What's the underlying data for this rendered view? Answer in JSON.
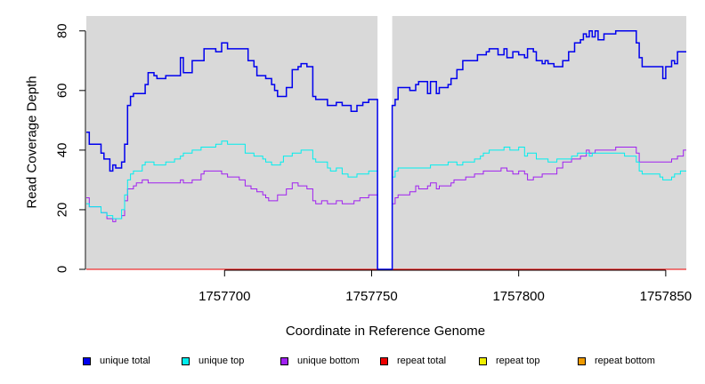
{
  "chart_data": {
    "type": "line",
    "title": "",
    "xlabel": "Coordinate in Reference Genome",
    "ylabel": "Read Coverage Depth",
    "xlim": [
      1757653,
      1757857
    ],
    "ylim": [
      0,
      85
    ],
    "x_ticks": [
      1757700,
      1757750,
      1757800,
      1757850
    ],
    "x_tick_labels": [
      "1757700",
      "1757750",
      "1757800",
      "1757850"
    ],
    "y_ticks": [
      0,
      20,
      40,
      60,
      80
    ],
    "y_tick_labels": [
      "0",
      "20",
      "40",
      "60",
      "80"
    ],
    "background": "#d9d9d9",
    "gap": [
      1757752,
      1757757
    ],
    "series": [
      {
        "name": "unique total",
        "color": "#0000ee",
        "points": [
          [
            1757653,
            46
          ],
          [
            1757654,
            42
          ],
          [
            1757658,
            39
          ],
          [
            1757659,
            37
          ],
          [
            1757661,
            33
          ],
          [
            1757662,
            35
          ],
          [
            1757663,
            34
          ],
          [
            1757665,
            36
          ],
          [
            1757666,
            42
          ],
          [
            1757667,
            55
          ],
          [
            1757668,
            58
          ],
          [
            1757669,
            59
          ],
          [
            1757673,
            62
          ],
          [
            1757674,
            66
          ],
          [
            1757676,
            65
          ],
          [
            1757677,
            64
          ],
          [
            1757680,
            65
          ],
          [
            1757685,
            71
          ],
          [
            1757686,
            66
          ],
          [
            1757689,
            70
          ],
          [
            1757693,
            74
          ],
          [
            1757697,
            73
          ],
          [
            1757699,
            76
          ],
          [
            1757701,
            74
          ],
          [
            1757708,
            70
          ],
          [
            1757710,
            68
          ],
          [
            1757711,
            65
          ],
          [
            1757714,
            64
          ],
          [
            1757716,
            62
          ],
          [
            1757717,
            60
          ],
          [
            1757718,
            58
          ],
          [
            1757721,
            61
          ],
          [
            1757723,
            67
          ],
          [
            1757725,
            68
          ],
          [
            1757726,
            69
          ],
          [
            1757728,
            68
          ],
          [
            1757730,
            58
          ],
          [
            1757731,
            57
          ],
          [
            1757735,
            55
          ],
          [
            1757738,
            56
          ],
          [
            1757740,
            55
          ],
          [
            1757743,
            53
          ],
          [
            1757745,
            55
          ],
          [
            1757747,
            56
          ],
          [
            1757749,
            57
          ],
          [
            1757752,
            0
          ],
          [
            1757757,
            55
          ],
          [
            1757758,
            57
          ],
          [
            1757759,
            61
          ],
          [
            1757763,
            60
          ],
          [
            1757765,
            62
          ],
          [
            1757766,
            63
          ],
          [
            1757769,
            59
          ],
          [
            1757770,
            63
          ],
          [
            1757772,
            59
          ],
          [
            1757773,
            61
          ],
          [
            1757776,
            62
          ],
          [
            1757777,
            64
          ],
          [
            1757779,
            67
          ],
          [
            1757781,
            70
          ],
          [
            1757786,
            72
          ],
          [
            1757789,
            73
          ],
          [
            1757790,
            74
          ],
          [
            1757793,
            72
          ],
          [
            1757795,
            74
          ],
          [
            1757796,
            71
          ],
          [
            1757798,
            73
          ],
          [
            1757800,
            72
          ],
          [
            1757802,
            71
          ],
          [
            1757803,
            74
          ],
          [
            1757805,
            73
          ],
          [
            1757806,
            70
          ],
          [
            1757808,
            69
          ],
          [
            1757809,
            70
          ],
          [
            1757810,
            69
          ],
          [
            1757812,
            68
          ],
          [
            1757815,
            70
          ],
          [
            1757817,
            73
          ],
          [
            1757819,
            76
          ],
          [
            1757821,
            77
          ],
          [
            1757822,
            79
          ],
          [
            1757823,
            78
          ],
          [
            1757824,
            80
          ],
          [
            1757825,
            78
          ],
          [
            1757826,
            80
          ],
          [
            1757827,
            77
          ],
          [
            1757829,
            79
          ],
          [
            1757833,
            80
          ],
          [
            1757840,
            76
          ],
          [
            1757841,
            71
          ],
          [
            1757842,
            68
          ],
          [
            1757849,
            64
          ],
          [
            1757850,
            68
          ],
          [
            1757852,
            70
          ],
          [
            1757853,
            69
          ],
          [
            1757854,
            73
          ],
          [
            1757857,
            73
          ]
        ]
      },
      {
        "name": "unique top",
        "color": "#00eeee",
        "points": [
          [
            1757653,
            22
          ],
          [
            1757654,
            21
          ],
          [
            1757658,
            19
          ],
          [
            1757660,
            18
          ],
          [
            1757662,
            17
          ],
          [
            1757665,
            20
          ],
          [
            1757666,
            25
          ],
          [
            1757667,
            30
          ],
          [
            1757668,
            32
          ],
          [
            1757669,
            33
          ],
          [
            1757672,
            35
          ],
          [
            1757673,
            36
          ],
          [
            1757676,
            35
          ],
          [
            1757680,
            36
          ],
          [
            1757683,
            37
          ],
          [
            1757685,
            38
          ],
          [
            1757686,
            39
          ],
          [
            1757689,
            40
          ],
          [
            1757692,
            41
          ],
          [
            1757697,
            42
          ],
          [
            1757699,
            43
          ],
          [
            1757701,
            42
          ],
          [
            1757707,
            39
          ],
          [
            1757710,
            38
          ],
          [
            1757713,
            37
          ],
          [
            1757714,
            36
          ],
          [
            1757716,
            35
          ],
          [
            1757719,
            36
          ],
          [
            1757720,
            38
          ],
          [
            1757723,
            39
          ],
          [
            1757726,
            40
          ],
          [
            1757730,
            37
          ],
          [
            1757731,
            36
          ],
          [
            1757735,
            34
          ],
          [
            1757736,
            33
          ],
          [
            1757738,
            34
          ],
          [
            1757740,
            32
          ],
          [
            1757742,
            31
          ],
          [
            1757745,
            32
          ],
          [
            1757749,
            33
          ],
          [
            1757752,
            0
          ],
          [
            1757757,
            31
          ],
          [
            1757758,
            33
          ],
          [
            1757759,
            34
          ],
          [
            1757770,
            35
          ],
          [
            1757776,
            36
          ],
          [
            1757779,
            35
          ],
          [
            1757781,
            36
          ],
          [
            1757785,
            37
          ],
          [
            1757787,
            38
          ],
          [
            1757788,
            39
          ],
          [
            1757790,
            40
          ],
          [
            1757795,
            41
          ],
          [
            1757797,
            40
          ],
          [
            1757800,
            41
          ],
          [
            1757802,
            38
          ],
          [
            1757803,
            39
          ],
          [
            1757806,
            37
          ],
          [
            1757810,
            36
          ],
          [
            1757813,
            37
          ],
          [
            1757815,
            37
          ],
          [
            1757818,
            38
          ],
          [
            1757820,
            39
          ],
          [
            1757824,
            38
          ],
          [
            1757825,
            39
          ],
          [
            1757836,
            38
          ],
          [
            1757840,
            36
          ],
          [
            1757841,
            33
          ],
          [
            1757842,
            32
          ],
          [
            1757848,
            31
          ],
          [
            1757849,
            30
          ],
          [
            1757852,
            31
          ],
          [
            1757853,
            32
          ],
          [
            1757855,
            33
          ],
          [
            1757857,
            33
          ]
        ]
      },
      {
        "name": "unique bottom",
        "color": "#a020f0",
        "points": [
          [
            1757653,
            24
          ],
          [
            1757654,
            21
          ],
          [
            1757658,
            19
          ],
          [
            1757660,
            17
          ],
          [
            1757662,
            16
          ],
          [
            1757663,
            17
          ],
          [
            1757665,
            18
          ],
          [
            1757666,
            23
          ],
          [
            1757667,
            27
          ],
          [
            1757669,
            28
          ],
          [
            1757670,
            29
          ],
          [
            1757672,
            30
          ],
          [
            1757674,
            29
          ],
          [
            1757685,
            30
          ],
          [
            1757686,
            29
          ],
          [
            1757689,
            30
          ],
          [
            1757692,
            32
          ],
          [
            1757693,
            33
          ],
          [
            1757699,
            32
          ],
          [
            1757701,
            31
          ],
          [
            1757705,
            30
          ],
          [
            1757707,
            28
          ],
          [
            1757709,
            27
          ],
          [
            1757711,
            26
          ],
          [
            1757713,
            25
          ],
          [
            1757714,
            24
          ],
          [
            1757715,
            23
          ],
          [
            1757718,
            25
          ],
          [
            1757721,
            27
          ],
          [
            1757723,
            29
          ],
          [
            1757725,
            28
          ],
          [
            1757728,
            27
          ],
          [
            1757730,
            23
          ],
          [
            1757731,
            22
          ],
          [
            1757733,
            23
          ],
          [
            1757735,
            22
          ],
          [
            1757738,
            23
          ],
          [
            1757740,
            22
          ],
          [
            1757744,
            23
          ],
          [
            1757746,
            24
          ],
          [
            1757749,
            25
          ],
          [
            1757752,
            0
          ],
          [
            1757757,
            22
          ],
          [
            1757758,
            24
          ],
          [
            1757759,
            25
          ],
          [
            1757763,
            26
          ],
          [
            1757765,
            28
          ],
          [
            1757766,
            27
          ],
          [
            1757769,
            28
          ],
          [
            1757770,
            29
          ],
          [
            1757772,
            27
          ],
          [
            1757773,
            28
          ],
          [
            1757777,
            29
          ],
          [
            1757778,
            30
          ],
          [
            1757782,
            31
          ],
          [
            1757785,
            32
          ],
          [
            1757788,
            33
          ],
          [
            1757791,
            33
          ],
          [
            1757794,
            34
          ],
          [
            1757796,
            33
          ],
          [
            1757798,
            32
          ],
          [
            1757800,
            33
          ],
          [
            1757802,
            32
          ],
          [
            1757803,
            30
          ],
          [
            1757805,
            31
          ],
          [
            1757808,
            32
          ],
          [
            1757813,
            34
          ],
          [
            1757815,
            36
          ],
          [
            1757818,
            37
          ],
          [
            1757821,
            38
          ],
          [
            1757823,
            40
          ],
          [
            1757824,
            39
          ],
          [
            1757826,
            40
          ],
          [
            1757833,
            41
          ],
          [
            1757840,
            39
          ],
          [
            1757841,
            36
          ],
          [
            1757852,
            37
          ],
          [
            1757854,
            38
          ],
          [
            1757856,
            40
          ],
          [
            1757857,
            40
          ]
        ]
      },
      {
        "name": "repeat total",
        "color": "#ee0000",
        "points": [
          [
            1757653,
            0
          ],
          [
            1757857,
            0
          ]
        ]
      },
      {
        "name": "repeat top",
        "color": "#eeee00",
        "points": [
          [
            1757653,
            0
          ],
          [
            1757857,
            0
          ]
        ]
      },
      {
        "name": "repeat bottom",
        "color": "#ee9a00",
        "points": [
          [
            1757653,
            0
          ],
          [
            1757857,
            0
          ]
        ]
      }
    ]
  },
  "legend": [
    {
      "label": "unique total",
      "color": "#0000ee"
    },
    {
      "label": "unique top",
      "color": "#00eeee"
    },
    {
      "label": "unique bottom",
      "color": "#a020f0"
    },
    {
      "label": "repeat total",
      "color": "#ee0000"
    },
    {
      "label": "repeat top",
      "color": "#eeee00"
    },
    {
      "label": "repeat bottom",
      "color": "#ee9a00"
    }
  ]
}
